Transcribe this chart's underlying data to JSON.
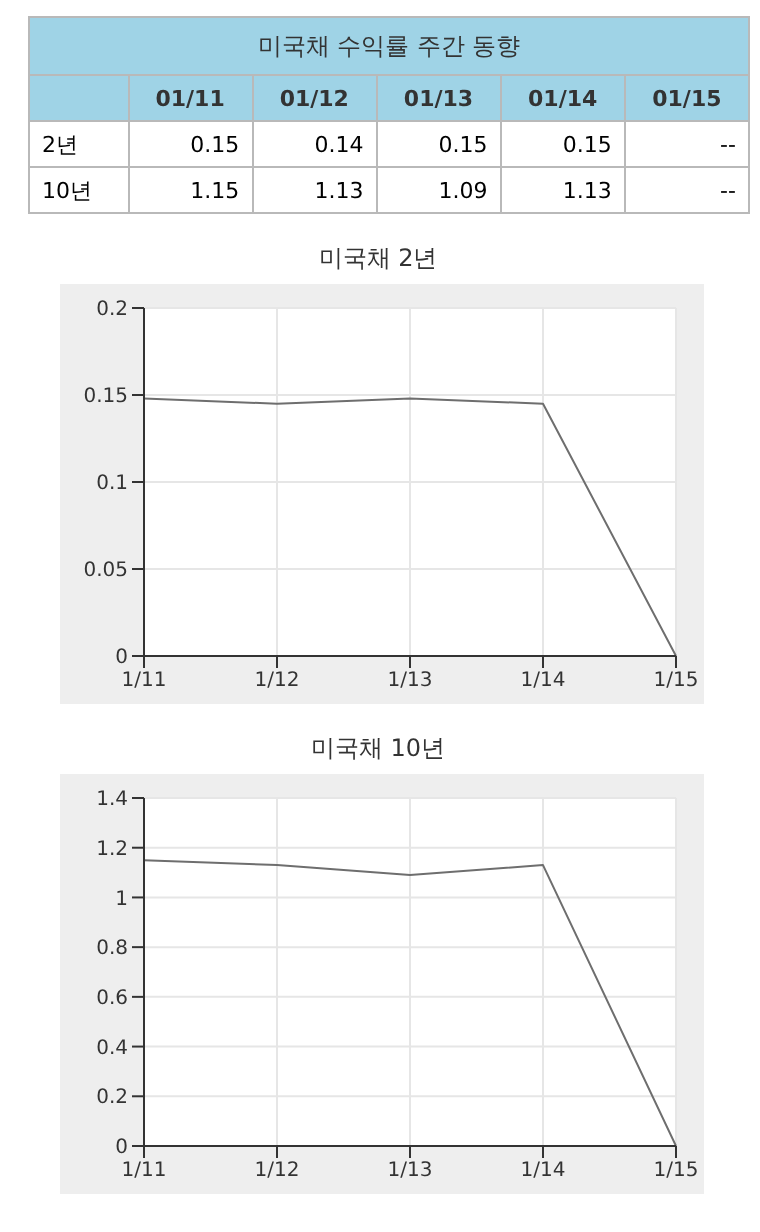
{
  "chart_data": [
    {
      "type": "other",
      "title": "미국채 수익률 주간 동향",
      "categories": [
        "01/11",
        "01/12",
        "01/13",
        "01/14",
        "01/15"
      ],
      "y_categories": [
        "2년",
        "10년"
      ],
      "cell_labels": [
        [
          "0.15",
          "0.14",
          "0.15",
          "0.15",
          "--"
        ],
        [
          "1.15",
          "1.13",
          "1.09",
          "1.13",
          "--"
        ]
      ]
    },
    {
      "type": "line",
      "title": "미국채 2년",
      "categories": [
        "1/11",
        "1/12",
        "1/13",
        "1/14",
        "1/15"
      ],
      "series": [
        {
          "color": "#6e6e6e",
          "values": [
            0.148,
            0.145,
            0.148,
            0.145,
            0
          ]
        }
      ],
      "ylim": [
        0,
        0.2
      ],
      "yticks": [
        0,
        0.05,
        0.1,
        0.15,
        0.2
      ],
      "grid": true,
      "marker": "none"
    },
    {
      "type": "line",
      "title": "미국채 10년",
      "categories": [
        "1/11",
        "1/12",
        "1/13",
        "1/14",
        "1/15"
      ],
      "series": [
        {
          "color": "#6e6e6e",
          "values": [
            1.15,
            1.13,
            1.09,
            1.13,
            0
          ]
        }
      ],
      "ylim": [
        0,
        1.4
      ],
      "yticks": [
        0,
        0.2,
        0.4,
        0.6,
        0.8,
        1,
        1.2,
        1.4
      ],
      "grid": true,
      "marker": "none"
    }
  ]
}
